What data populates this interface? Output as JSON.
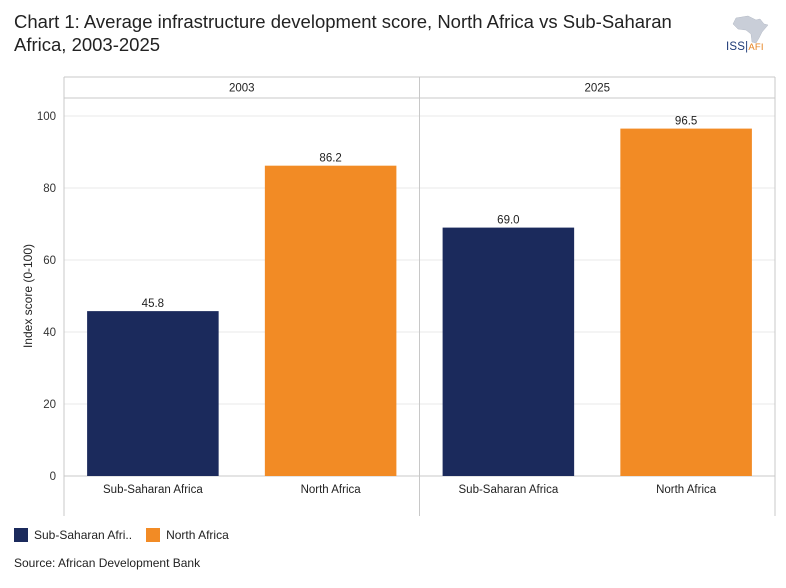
{
  "title": "Chart 1: Average infrastructure development score, North Africa vs Sub-Saharan Africa, 2003-2025",
  "logo": {
    "main": "ISS",
    "sep": "|",
    "sub": "AFI"
  },
  "source": "Source: African Development Bank",
  "colors": {
    "ssa": "#1b2a5c",
    "na": "#f28b25",
    "grid": "#e8e8e8",
    "border": "#c8c8c8"
  },
  "chart_data": {
    "type": "bar",
    "ylabel": "Index score (0-100)",
    "ylim": [
      0,
      100
    ],
    "yticks": [
      0,
      20,
      40,
      60,
      80,
      100
    ],
    "panels": [
      {
        "label": "2003",
        "categories": [
          "Sub-Saharan Africa",
          "North Africa"
        ],
        "values": [
          45.8,
          86.2
        ],
        "value_labels": [
          "45.8",
          "86.2"
        ]
      },
      {
        "label": "2025",
        "categories": [
          "Sub-Saharan Africa",
          "North Africa"
        ],
        "values": [
          69.0,
          96.5
        ],
        "value_labels": [
          "69.0",
          "96.5"
        ]
      }
    ],
    "legend": [
      {
        "label": "Sub-Saharan Afri..",
        "color": "#1b2a5c"
      },
      {
        "label": "North Africa",
        "color": "#f28b25"
      }
    ]
  }
}
